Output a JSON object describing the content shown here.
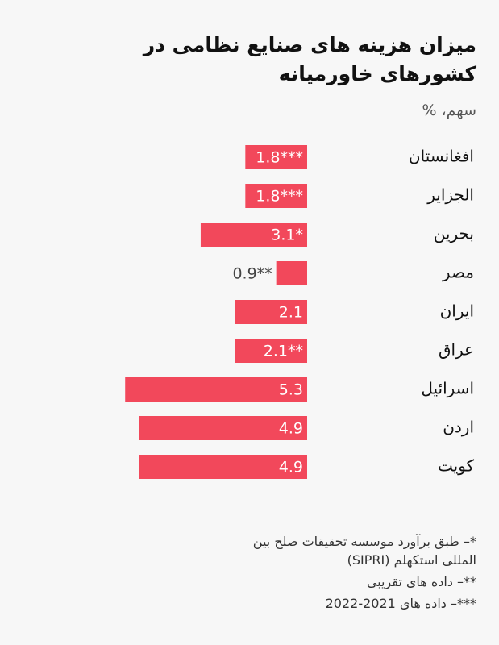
{
  "chart_data": {
    "type": "bar",
    "orientation": "horizontal",
    "title": [
      "میزان هزینه های صنایع نظامی در",
      "کشورهای خاورمیانه"
    ],
    "subtitle": "سهم، %",
    "categories": [
      "افغانستان",
      "الجزایر",
      "بحرین",
      "مصر",
      "ایران",
      "عراق",
      "اسرائیل",
      "اردن",
      "کویت"
    ],
    "values": [
      1.8,
      1.8,
      3.1,
      0.9,
      2.1,
      2.1,
      5.3,
      4.9,
      4.9
    ],
    "value_labels": [
      "1.8***",
      "1.8***",
      "3.1*",
      "0.9**",
      "2.1",
      "2.1**",
      "5.3",
      "4.9",
      "4.9"
    ],
    "color": "#f2485b",
    "notes": [
      "*– طبق برآورد موسسه تحقیقات صلح بین المللی استکهلم (SIPRI)",
      "**– داده های تقریبی",
      "***– داده های 2021-2022"
    ]
  }
}
